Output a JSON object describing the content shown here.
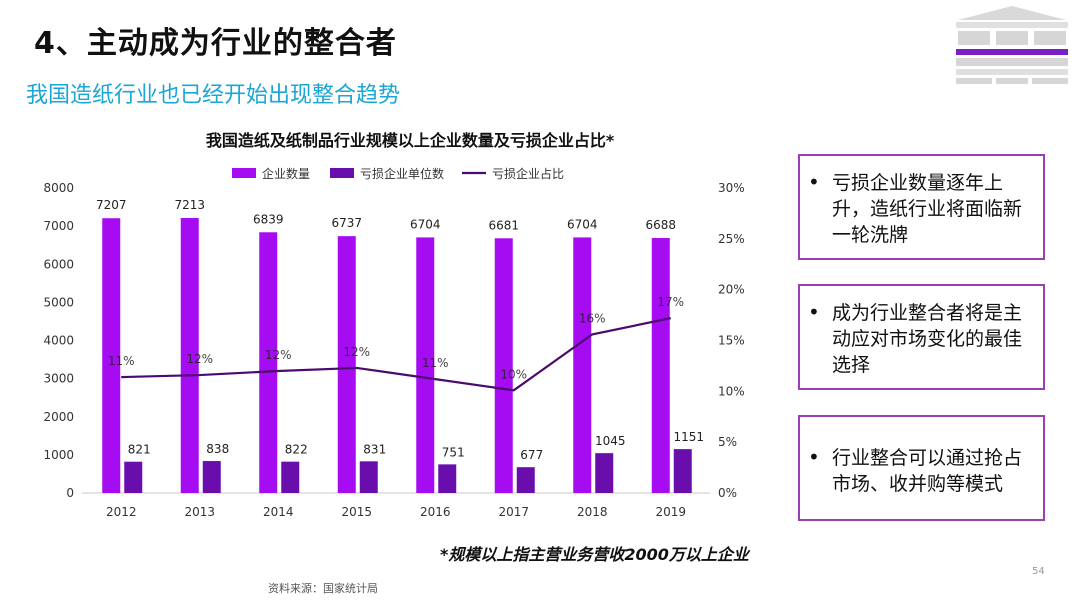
{
  "slide": {
    "title": "4、主动成为行业的整合者",
    "subtitle": "我国造纸行业也已经开始出现整合趋势",
    "note": "*规模以上指主营业务营收2000万以上企业",
    "source": "资料来源：国家统计局",
    "page_number": "54"
  },
  "boxes": [
    {
      "text": "亏损企业数量逐年上升，造纸行业将面临新一轮洗牌"
    },
    {
      "text": "成为行业整合者将是主动应对市场变化的最佳选择"
    },
    {
      "text": "行业整合可以通过抢占市场、收并购等模式"
    }
  ],
  "colors": {
    "enterprise_bar": "#a50cf2",
    "loss_bar": "#6a0dad",
    "ratio_line": "#4b0a6e",
    "border": "#9b3fb3",
    "subtitle": "#1aa6d6"
  },
  "chart_data": {
    "type": "bar",
    "title": "我国造纸及纸制品行业规模以上企业数量及亏损企业占比*",
    "categories": [
      "2012",
      "2013",
      "2014",
      "2015",
      "2016",
      "2017",
      "2018",
      "2019"
    ],
    "series": [
      {
        "name": "企业数量",
        "type": "bar",
        "axis": "left",
        "values": [
          7207,
          7213,
          6839,
          6737,
          6704,
          6681,
          6704,
          6688
        ],
        "labels": [
          "7207",
          "7213",
          "6839",
          "6737",
          "6704",
          "6681",
          "6704",
          "6688"
        ]
      },
      {
        "name": "亏损企业单位数",
        "type": "bar",
        "axis": "left",
        "values": [
          821,
          838,
          822,
          831,
          751,
          677,
          1045,
          1151
        ],
        "labels": [
          "821",
          "838",
          "822",
          "831",
          "751",
          "677",
          "1045",
          "1151"
        ]
      },
      {
        "name": "亏损企业占比",
        "type": "line",
        "axis": "right",
        "values": [
          11.4,
          11.6,
          12.0,
          12.3,
          11.2,
          10.1,
          15.6,
          17.2
        ],
        "labels": [
          "11%",
          "12%",
          "12%",
          "12%",
          "11%",
          "10%",
          "16%",
          "17%"
        ]
      }
    ],
    "y_left": {
      "min": 0,
      "max": 8000,
      "ticks": [
        "0",
        "1000",
        "2000",
        "3000",
        "4000",
        "5000",
        "6000",
        "7000",
        "8000"
      ]
    },
    "y_right": {
      "min": 0,
      "max": 30,
      "ticks": [
        "0%",
        "5%",
        "10%",
        "15%",
        "20%",
        "25%",
        "30%"
      ]
    },
    "legend": "top",
    "grid": false
  }
}
